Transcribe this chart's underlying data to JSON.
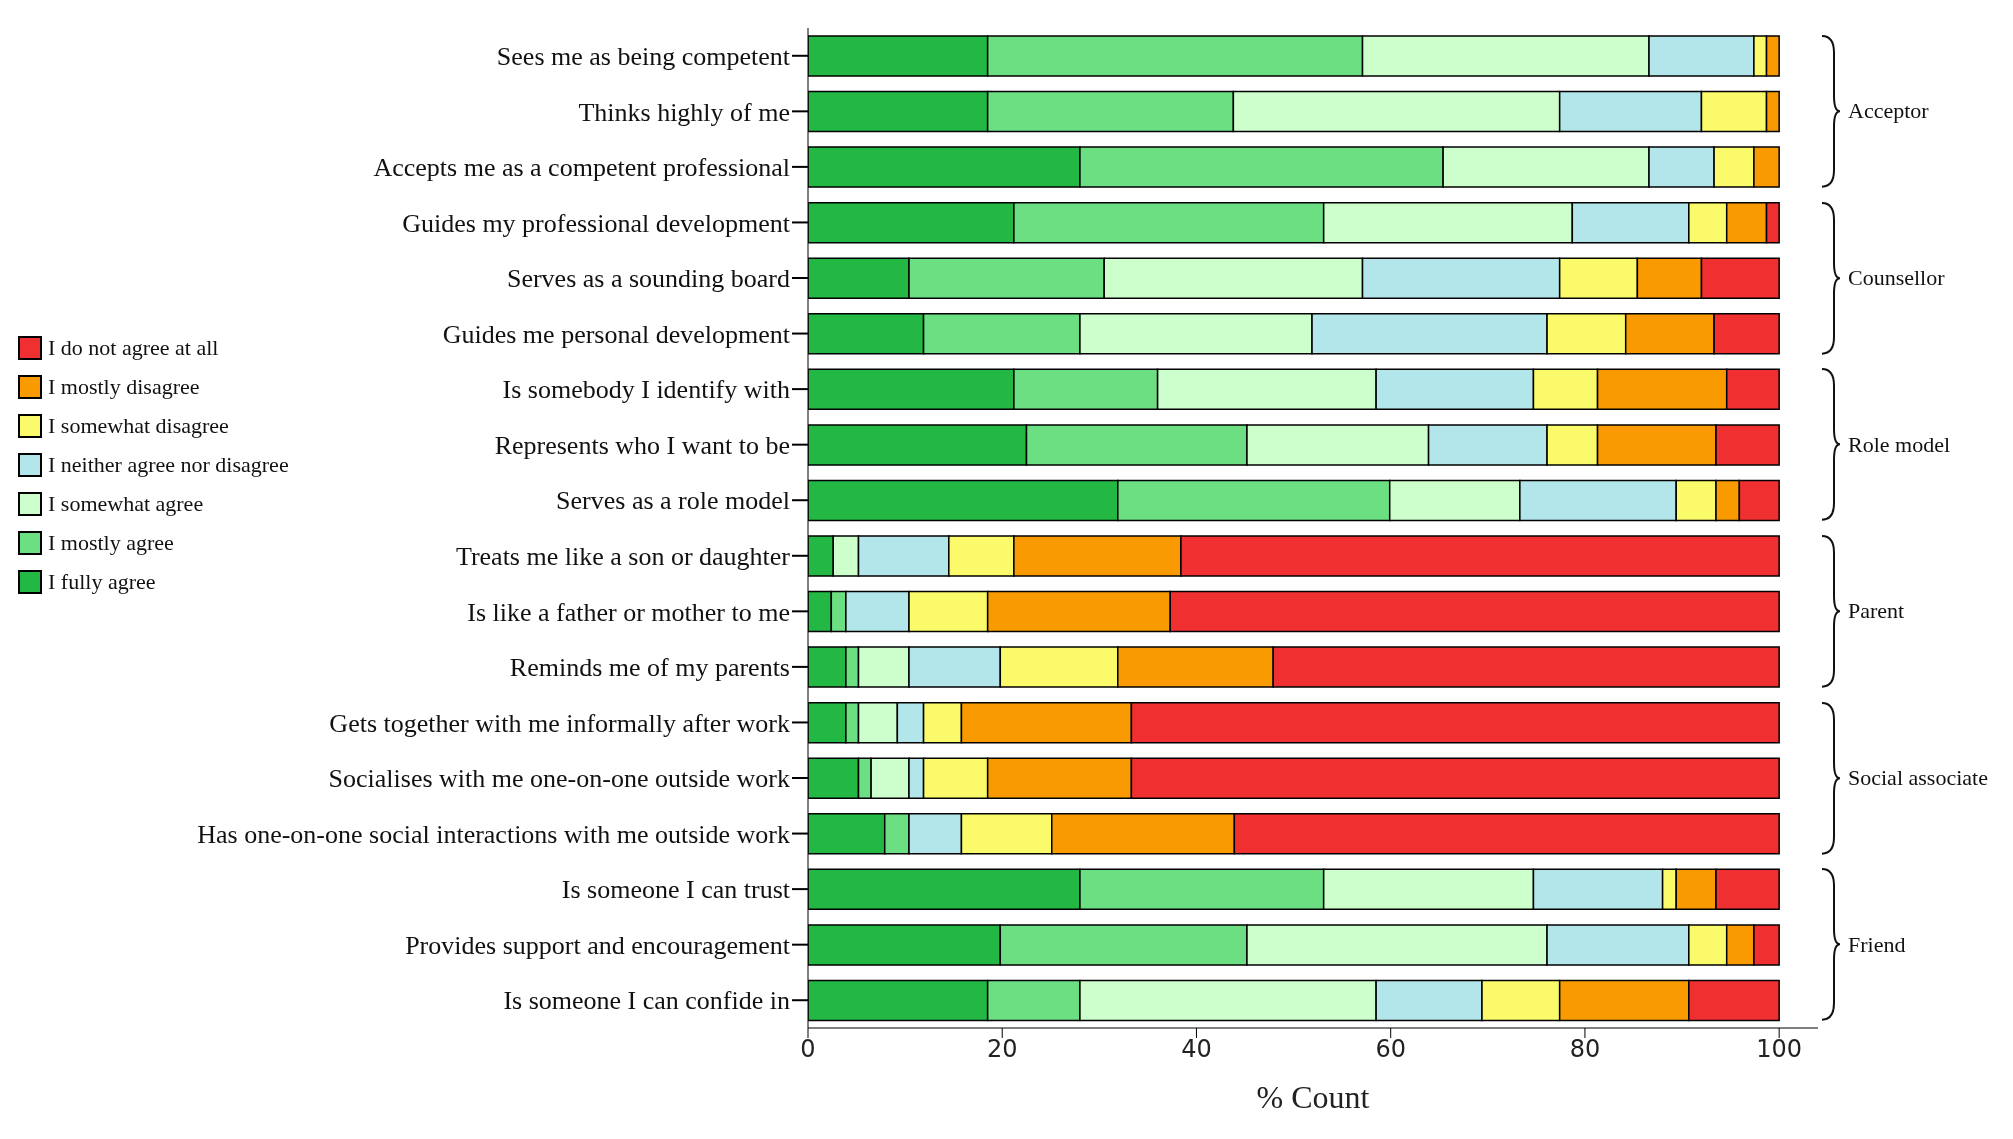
{
  "chart_data": {
    "type": "bar",
    "orientation": "horizontal",
    "stacked": true,
    "xlabel": "% Count",
    "xlim": [
      0,
      104
    ],
    "xticks": [
      0,
      20,
      40,
      60,
      80,
      100
    ],
    "legend": "left",
    "categories": [
      "Sees me as being competent",
      "Thinks highly of me",
      "Accepts me as a competent professional",
      "Guides my professional development",
      "Serves as a sounding board",
      "Guides me personal development",
      "Is somebody I identify with",
      "Represents who I want to be",
      "Serves as a role model",
      "Treats me like a son or daughter",
      "Is like a father or mother to me",
      "Reminds me of my parents",
      "Gets together with me informally after work",
      "Socialises with me one-on-one outside work",
      "Has one-on-one social interactions with me outside work",
      "Is someone I can trust",
      "Provides support and encouragement",
      "Is someone I can confide in"
    ],
    "annotations": [
      "Acceptor",
      "Counsellor",
      "Role model",
      "Parent",
      "Social associate",
      "Friend"
    ],
    "series": [
      {
        "name": "I fully agree",
        "color": "#22b843",
        "values": [
          18.5,
          18.5,
          28,
          21.2,
          10.4,
          11.9,
          21.2,
          22.5,
          31.9,
          2.6,
          2.4,
          3.9,
          3.9,
          5.2,
          7.9,
          28,
          19.8,
          18.5
        ]
      },
      {
        "name": "I mostly agree",
        "color": "#6ddf83",
        "values": [
          38.6,
          25.3,
          37.4,
          31.9,
          20.1,
          16.1,
          14.8,
          22.7,
          28,
          0,
          1.5,
          1.3,
          1.3,
          1.3,
          2.5,
          25.1,
          25.4,
          9.5
        ]
      },
      {
        "name": "I somewhat agree",
        "color": "#ccffcc",
        "values": [
          29.5,
          33.6,
          21.2,
          25.6,
          26.6,
          23.9,
          22.5,
          18.7,
          13.4,
          2.6,
          0,
          5.2,
          4,
          3.9,
          0,
          21.6,
          30.9,
          30.5
        ]
      },
      {
        "name": "I neither agree nor disagree",
        "color": "#b3e6ea",
        "values": [
          10.8,
          14.6,
          6.7,
          12,
          20.3,
          24.2,
          16.2,
          12.2,
          16.1,
          9.3,
          6.5,
          9.4,
          2.7,
          1.5,
          5.4,
          13.3,
          14.6,
          10.9
        ]
      },
      {
        "name": "I somewhat disagree",
        "color": "#fafa6b",
        "values": [
          1.3,
          6.7,
          4.1,
          3.9,
          8,
          8.1,
          6.6,
          5.2,
          4.1,
          6.7,
          8.1,
          12.1,
          3.9,
          6.6,
          9.3,
          1.4,
          3.9,
          8
        ]
      },
      {
        "name": "I mostly disagree",
        "color": "#f99b00",
        "values": [
          1.3,
          1.3,
          2.6,
          4.1,
          6.6,
          9.1,
          13.3,
          12.2,
          2.4,
          17.2,
          18.8,
          16,
          17.5,
          14.8,
          18.8,
          4.1,
          2.8,
          13.3
        ]
      },
      {
        "name": "I do not agree at all",
        "color": "#f03030",
        "values": [
          0,
          0,
          0,
          1.3,
          8,
          6.7,
          5.4,
          6.5,
          4.1,
          61.6,
          62.7,
          52.1,
          66.7,
          66.7,
          56.1,
          6.5,
          2.6,
          9.3
        ]
      }
    ]
  }
}
